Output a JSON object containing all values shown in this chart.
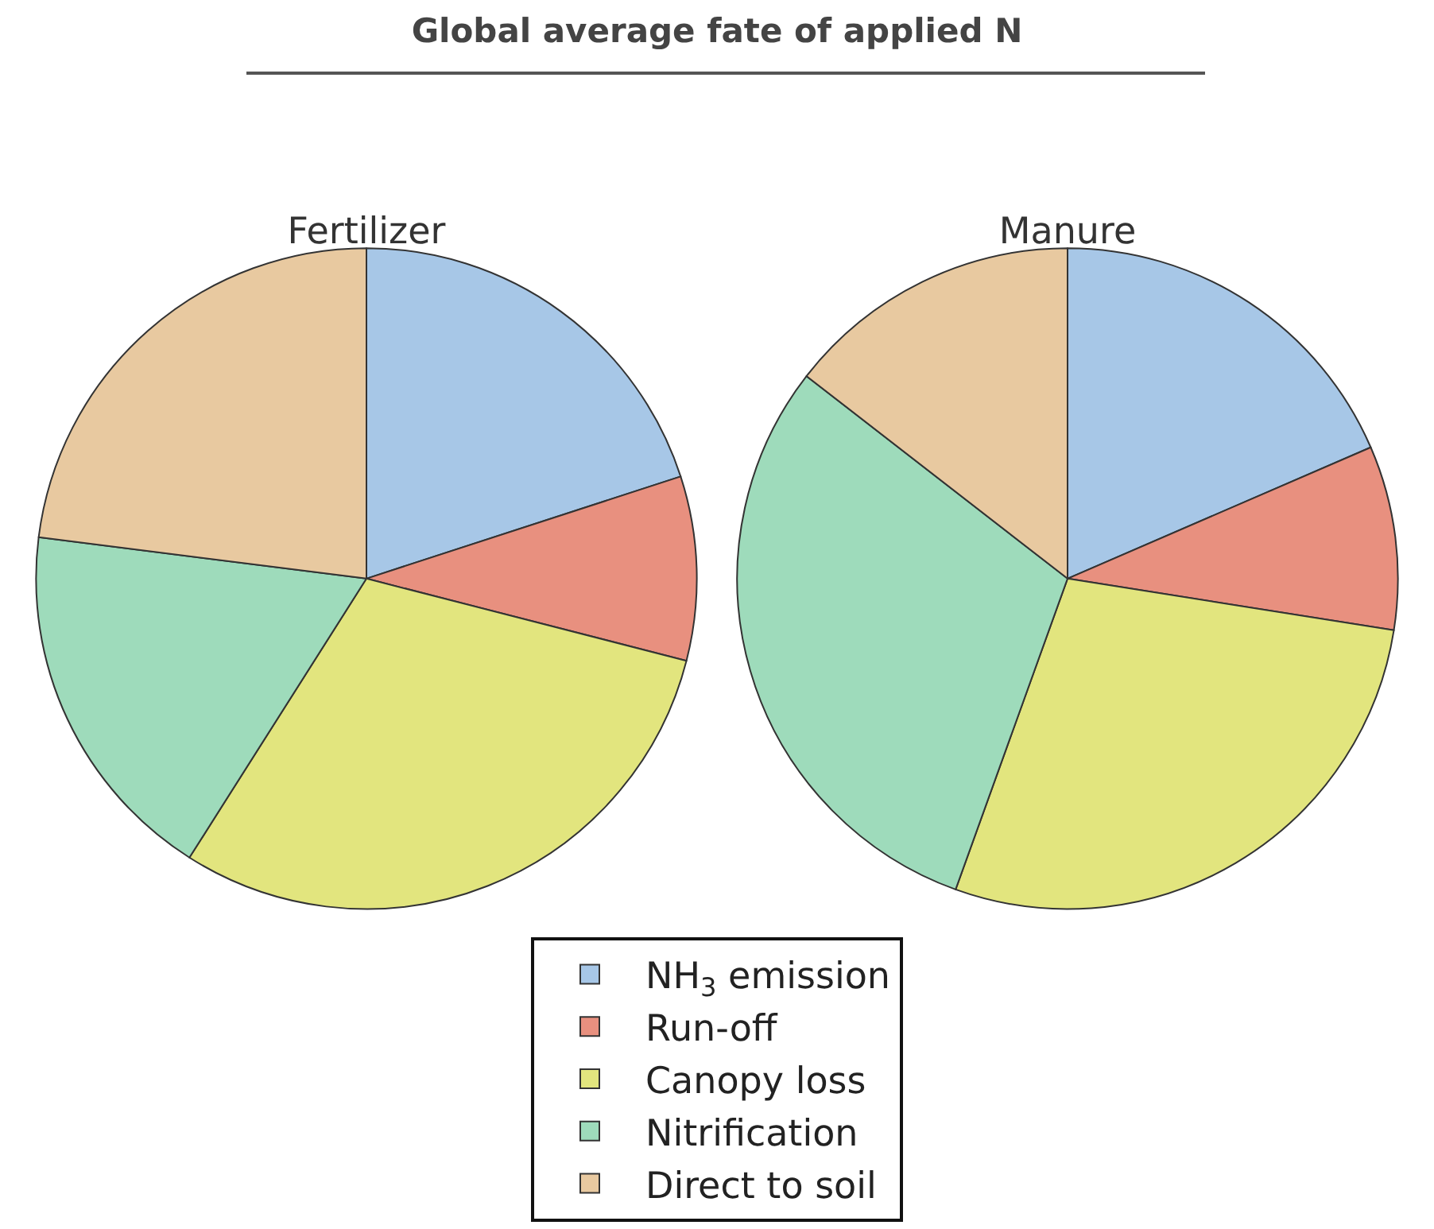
{
  "chart_data": {
    "type": "pie",
    "title": "Global average fate of applied N",
    "categories": [
      "NH$_{3}$ emission",
      "Run-off",
      "Canopy loss",
      "Nitrification",
      "Direct to soil"
    ],
    "colors": [
      "#a7c7e7",
      "#e8907f",
      "#e2e57e",
      "#9edbbb",
      "#e8c9a0"
    ],
    "series": [
      {
        "name": "Fertilizer",
        "values": [
          20,
          9,
          30,
          18,
          23
        ]
      },
      {
        "name": "Manure",
        "values": [
          18.5,
          9,
          28,
          30,
          14.5
        ]
      }
    ],
    "legend": "bottom"
  }
}
